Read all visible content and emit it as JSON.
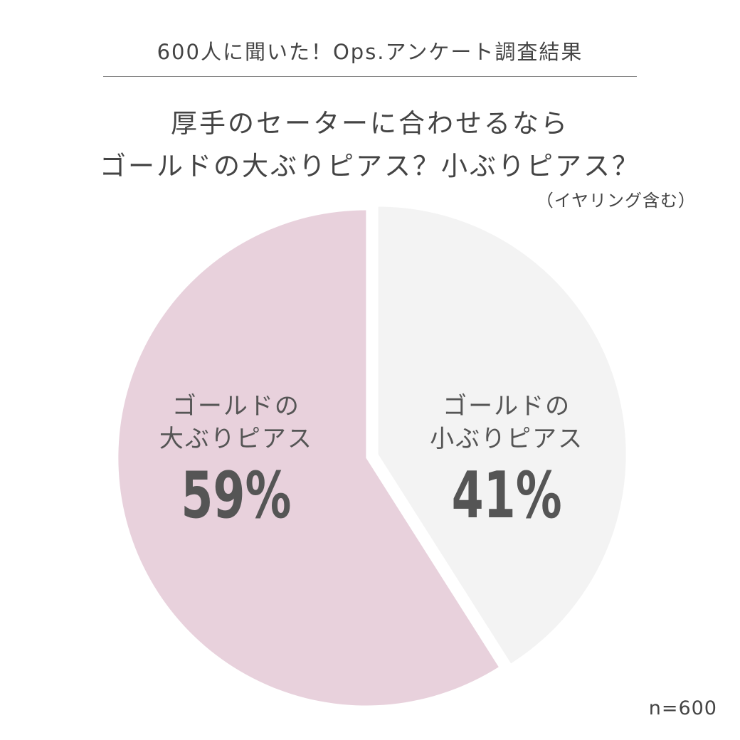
{
  "header": {
    "survey_title": "600人に聞いた！Ops.アンケート調査結果"
  },
  "question": {
    "line1": "厚手のセーターに合わせるなら",
    "line2": "ゴールドの大ぶりピアス？小ぶりピアス？",
    "note": "（イヤリング含む）"
  },
  "footer": {
    "sample_size": "n=600"
  },
  "chart_data": {
    "type": "pie",
    "start": "12 o'clock",
    "direction": "clockwise",
    "slices": [
      {
        "label_line1": "ゴールドの",
        "label_line2": "小ぶりピアス",
        "value": 41,
        "value_label": "41%",
        "color": "#f3f3f3"
      },
      {
        "label_line1": "ゴールドの",
        "label_line2": "大ぶりピアス",
        "value": 59,
        "value_label": "59%",
        "color": "#e8d1dc"
      }
    ]
  }
}
